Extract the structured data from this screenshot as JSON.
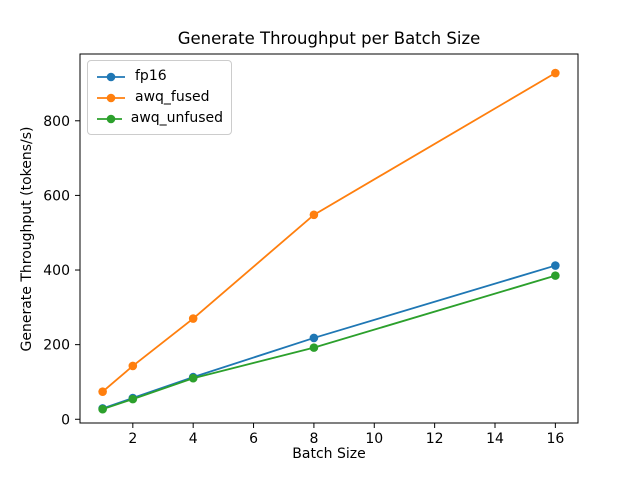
{
  "chart_data": {
    "type": "line",
    "title": "Generate Throughput per Batch Size",
    "xlabel": "Batch Size",
    "ylabel": "Generate Throughput (tokens/s)",
    "x": [
      1,
      2,
      4,
      8,
      16
    ],
    "series": [
      {
        "name": "fp16",
        "color": "#1f77b4",
        "marker": "o",
        "values": [
          29,
          57,
          113,
          218,
          412
        ]
      },
      {
        "name": "awq_fused",
        "color": "#ff7f0e",
        "marker": "o",
        "values": [
          74,
          143,
          270,
          548,
          928
        ]
      },
      {
        "name": "awq_unfused",
        "color": "#2ca02c",
        "marker": "o",
        "values": [
          27,
          54,
          110,
          192,
          385
        ]
      }
    ],
    "x_ticks": [
      2,
      4,
      6,
      8,
      10,
      12,
      14,
      16
    ],
    "y_ticks": [
      0,
      200,
      400,
      600,
      800
    ],
    "xlim": [
      0.25,
      16.75
    ],
    "ylim": [
      -10,
      979
    ],
    "grid": false,
    "legend_position": "upper left",
    "frame_color": "#000000",
    "legend_border_color": "#cccccc"
  }
}
